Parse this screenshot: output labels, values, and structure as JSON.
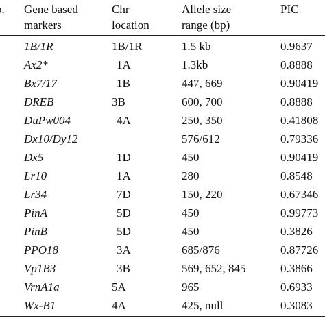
{
  "table": {
    "headers": {
      "no": "o.",
      "marker_line1": "Gene based",
      "marker_line2": "markers",
      "chr_line1": "Chr",
      "chr_line2": "location",
      "allele_line1": "Allele size",
      "allele_line2": "range (bp)",
      "pic": "PIC"
    },
    "rows": [
      {
        "marker": "1B/1R",
        "chr": "1B/1R",
        "allele": "1.5 kb",
        "pic": "0.9637"
      },
      {
        "marker": "Ax2*",
        "chr": "1A",
        "allele": "1.3kb",
        "pic": "0.8888"
      },
      {
        "marker": "Bx7/17",
        "chr": "1B",
        "allele": "447, 669",
        "pic": "0.90419"
      },
      {
        "marker": "DREB",
        "chr": "3B",
        "allele": "600, 700",
        "pic": "0.8888"
      },
      {
        "marker": "DuPw004",
        "chr": "4A",
        "allele": "250, 350",
        "pic": "0.41808"
      },
      {
        "marker": "Dx10/Dy12",
        "chr": "",
        "allele": "576/612",
        "pic": "0.79336"
      },
      {
        "marker": "Dx5",
        "chr": "1D",
        "allele": "450",
        "pic": "0.90419"
      },
      {
        "marker": "Lr10",
        "chr": "1A",
        "allele": "280",
        "pic": "0.8548"
      },
      {
        "marker": "Lr34",
        "chr": "7D",
        "allele": "150, 220",
        "pic": "0.67346"
      },
      {
        "marker": "PinA",
        "chr": "5D",
        "allele": "450",
        "pic": "0.99773"
      },
      {
        "marker": "PinB",
        "chr": "5D",
        "allele": "450",
        "pic": "0.3826"
      },
      {
        "marker": "PPO18",
        "chr": "3A",
        "allele": "685/876",
        "pic": "0.87726"
      },
      {
        "marker": "Vp1B3",
        "chr": "3B",
        "allele": "569, 652, 845",
        "pic": "0.3866"
      },
      {
        "marker": "VrnA1a",
        "chr": "5A",
        "allele": "965",
        "pic": "0.6933"
      },
      {
        "marker": "Wx-B1",
        "chr": "4A",
        "allele": "425, null",
        "pic": "0.3083"
      }
    ]
  }
}
